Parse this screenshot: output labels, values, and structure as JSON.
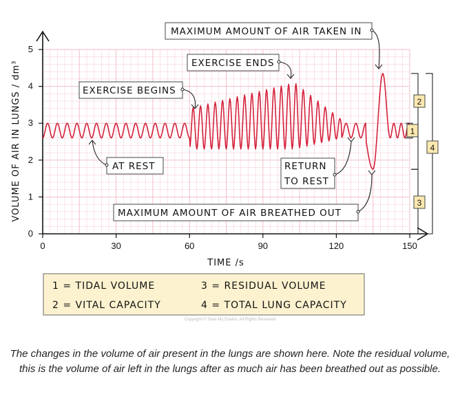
{
  "chart_data": {
    "type": "line",
    "xlabel": "TIME /s",
    "ylabel": "VOLUME OF AIR IN LUNGS / dm³",
    "xlim": [
      0,
      150
    ],
    "ylim": [
      0,
      5
    ],
    "xticks": [
      0,
      30,
      60,
      90,
      120,
      150
    ],
    "yticks": [
      0,
      1,
      2,
      3,
      4,
      5
    ],
    "grid": true,
    "series": [
      {
        "color": "#d4203a",
        "segments": [
          {
            "from": 0,
            "to": 60,
            "baseline": 2.8,
            "amplitude": 0.2,
            "period": 4,
            "description": "tidal breathing at rest"
          },
          {
            "from": 60,
            "to": 103,
            "peak_start": 3.4,
            "peak_end": 4.1,
            "trough": 2.3,
            "period": 3,
            "description": "breathing during exercise (growing)"
          },
          {
            "from": 103,
            "to": 122,
            "peak_start": 4.1,
            "peak_end": 3.1,
            "trough_start": 2.3,
            "trough_end": 2.6,
            "period": 3
          },
          {
            "from": 122,
            "to": 132,
            "baseline": 2.8,
            "amplitude": 0.2,
            "period": 4
          },
          {
            "from": 132,
            "to": 135,
            "min": 1.75,
            "description": "maximum breath out"
          },
          {
            "from": 135,
            "to": 139,
            "max": 4.35,
            "description": "maximum breath in"
          },
          {
            "from": 142,
            "to": 150,
            "baseline": 2.8,
            "amplitude": 0.2,
            "period": 3
          }
        ]
      }
    ],
    "annotations": [
      {
        "text": "MAXIMUM AMOUNT OF AIR TAKEN IN",
        "x": 139,
        "y": 4.35
      },
      {
        "text": "EXERCISE ENDS",
        "x": 103,
        "y": 4.1
      },
      {
        "text": "EXERCISE BEGINS",
        "x": 62,
        "y": 3.4
      },
      {
        "text": "AT REST",
        "x": 20,
        "y": 2.6
      },
      {
        "text": "RETURN",
        "x": 128,
        "y": 2.6
      },
      {
        "text": "TO REST",
        "x": 128,
        "y": 2.6
      },
      {
        "text": "MAXIMUM AMOUNT OF AIR BREATHED OUT",
        "x": 135,
        "y": 1.75
      }
    ],
    "brackets": [
      {
        "label": "1",
        "from": 2.6,
        "to": 3.0
      },
      {
        "label": "2",
        "from": 1.75,
        "to": 4.35
      },
      {
        "label": "3",
        "from": 0,
        "to": 1.75
      },
      {
        "label": "4",
        "from": 0,
        "to": 4.35
      }
    ]
  },
  "key": [
    "1 = TIDAL VOLUME",
    "3 = RESIDUAL VOLUME",
    "2 = VITAL CAPACITY",
    "4 = TOTAL LUNG CAPACITY"
  ],
  "copyright": "Copyright © Save My Exams. All Rights Reserved",
  "caption": "The changes in the volume of air present in the lungs are shown here. Note the residual volume, this is the volume of air left in the lungs after as much air has been breathed out as possible.",
  "colors": {
    "line": "#d4203a",
    "grid": "#f1b9c4",
    "key_bg": "#fdf2cf",
    "bracket_label_bg": "#fde8b0"
  }
}
